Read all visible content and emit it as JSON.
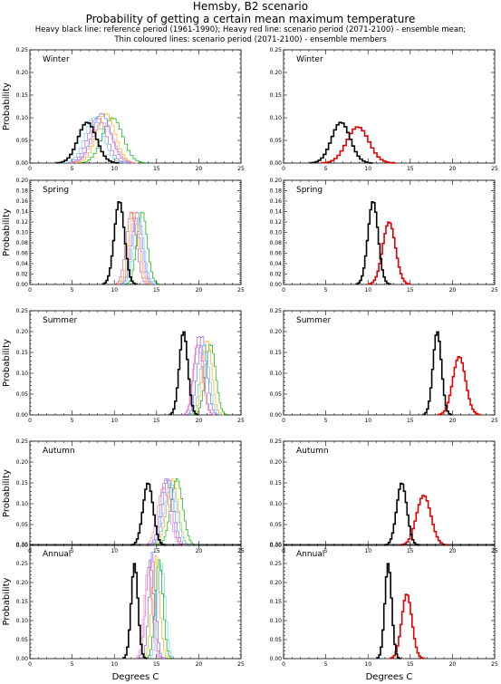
{
  "header": {
    "title": "Hemsby, B2 scenario",
    "subtitle": "Probability of getting a certain mean maximum temperature",
    "note1": "Heavy black line: reference period (1961-1990); Heavy red line: scenario period (2071-2100) - ensemble mean;",
    "note2": "Thin coloured lines: scenario period (2071-2100) - ensemble members"
  },
  "chart_data": {
    "type": "line",
    "step": true,
    "ylabel": "Probability",
    "xlabel": "Degrees C",
    "xlim": [
      0,
      25
    ],
    "xticks": [
      0,
      5,
      10,
      15,
      20,
      25
    ],
    "grid": false,
    "colors": {
      "reference": "#000000",
      "mean": "#e00000",
      "members": [
        "#00b000",
        "#7070ff",
        "#ffb000",
        "#c060c0",
        "#60d0ff",
        "#ff80c0"
      ]
    },
    "seasons": [
      {
        "name": "Winter",
        "ylim": [
          0,
          0.25
        ],
        "yticks": [
          0.0,
          0.05,
          0.1,
          0.15,
          0.2,
          0.25
        ],
        "ref": {
          "mean": 6.8,
          "sd": 1.1,
          "peak": 0.09
        },
        "scen": {
          "mean": 8.8,
          "sd": 1.3,
          "peak": 0.08
        },
        "members": [
          {
            "mean": 9.8,
            "sd": 1.2,
            "peak": 0.1
          },
          {
            "mean": 8.5,
            "sd": 1.1,
            "peak": 0.11
          },
          {
            "mean": 9.0,
            "sd": 1.1,
            "peak": 0.11
          },
          {
            "mean": 8.0,
            "sd": 1.1,
            "peak": 0.1
          },
          {
            "mean": 7.6,
            "sd": 1.1,
            "peak": 0.1
          },
          {
            "mean": 8.6,
            "sd": 1.2,
            "peak": 0.09
          }
        ]
      },
      {
        "name": "Spring",
        "ylim": [
          0,
          0.2
        ],
        "yticks": [
          0.0,
          0.02,
          0.04,
          0.06,
          0.08,
          0.1,
          0.12,
          0.14,
          0.16,
          0.18,
          0.2
        ],
        "ref": {
          "mean": 10.6,
          "sd": 0.6,
          "peak": 0.16
        },
        "scen": {
          "mean": 12.5,
          "sd": 0.75,
          "peak": 0.12
        },
        "members": [
          {
            "mean": 13.3,
            "sd": 0.6,
            "peak": 0.14
          },
          {
            "mean": 12.7,
            "sd": 0.6,
            "peak": 0.14
          },
          {
            "mean": 12.3,
            "sd": 0.6,
            "peak": 0.14
          },
          {
            "mean": 12.0,
            "sd": 0.6,
            "peak": 0.14
          },
          {
            "mean": 12.9,
            "sd": 0.6,
            "peak": 0.13
          },
          {
            "mean": 12.5,
            "sd": 0.6,
            "peak": 0.13
          }
        ]
      },
      {
        "name": "Summer",
        "ylim": [
          0,
          0.25
        ],
        "yticks": [
          0.0,
          0.05,
          0.1,
          0.15,
          0.2,
          0.25
        ],
        "ref": {
          "mean": 18.2,
          "sd": 0.5,
          "peak": 0.2
        },
        "scen": {
          "mean": 20.8,
          "sd": 0.75,
          "peak": 0.14
        },
        "members": [
          {
            "mean": 21.4,
            "sd": 0.6,
            "peak": 0.17
          },
          {
            "mean": 20.4,
            "sd": 0.55,
            "peak": 0.19
          },
          {
            "mean": 21.0,
            "sd": 0.55,
            "peak": 0.18
          },
          {
            "mean": 20.0,
            "sd": 0.55,
            "peak": 0.19
          },
          {
            "mean": 20.7,
            "sd": 0.55,
            "peak": 0.17
          },
          {
            "mean": 19.9,
            "sd": 0.55,
            "peak": 0.17
          }
        ]
      },
      {
        "name": "Autumn",
        "ylim": [
          0,
          0.25
        ],
        "yticks": [
          0.0,
          0.05,
          0.1,
          0.15,
          0.2,
          0.25
        ],
        "ref": {
          "mean": 14.0,
          "sd": 0.6,
          "peak": 0.15
        },
        "scen": {
          "mean": 16.6,
          "sd": 0.85,
          "peak": 0.12
        },
        "members": [
          {
            "mean": 17.4,
            "sd": 0.7,
            "peak": 0.16
          },
          {
            "mean": 16.4,
            "sd": 0.65,
            "peak": 0.16
          },
          {
            "mean": 16.9,
            "sd": 0.65,
            "peak": 0.16
          },
          {
            "mean": 16.1,
            "sd": 0.65,
            "peak": 0.16
          },
          {
            "mean": 16.7,
            "sd": 0.7,
            "peak": 0.15
          },
          {
            "mean": 15.8,
            "sd": 0.7,
            "peak": 0.14
          }
        ]
      },
      {
        "name": "Annual",
        "ylim": [
          0,
          0.3
        ],
        "yticks": [
          0.0,
          0.05,
          0.1,
          0.15,
          0.2,
          0.25,
          0.3
        ],
        "ref": {
          "mean": 12.4,
          "sd": 0.4,
          "peak": 0.25
        },
        "scen": {
          "mean": 14.6,
          "sd": 0.6,
          "peak": 0.17
        },
        "members": [
          {
            "mean": 15.3,
            "sd": 0.45,
            "peak": 0.26
          },
          {
            "mean": 14.5,
            "sd": 0.4,
            "peak": 0.28
          },
          {
            "mean": 14.9,
            "sd": 0.45,
            "peak": 0.27
          },
          {
            "mean": 14.2,
            "sd": 0.45,
            "peak": 0.26
          },
          {
            "mean": 15.6,
            "sd": 0.45,
            "peak": 0.25
          },
          {
            "mean": 14.0,
            "sd": 0.45,
            "peak": 0.24
          }
        ]
      }
    ]
  }
}
